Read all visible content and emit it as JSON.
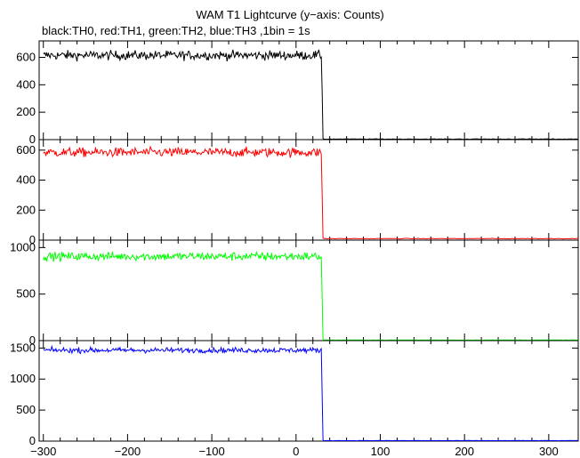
{
  "header": {
    "title": "WAM T1 Lightcurve (y−axis: Counts)",
    "subtitle": "black:TH0, red:TH1, green:TH2, blue:TH3 ,1bin = 1s"
  },
  "chart_data": [
    {
      "type": "line",
      "series": [
        {
          "name": "TH0",
          "color": "#000000",
          "level_before": 615,
          "noise": 24,
          "drop_at": 31,
          "transition": [
            [
              31,
              340
            ],
            [
              32,
              10
            ]
          ],
          "level_after": 4
        }
      ],
      "xlim": [
        -305,
        335
      ],
      "ylim": [
        0,
        720
      ],
      "yticks": [
        0,
        200,
        400,
        600
      ],
      "ytick_labels": [
        "0",
        "200",
        "400",
        "600"
      ]
    },
    {
      "type": "line",
      "series": [
        {
          "name": "TH1",
          "color": "#ff0000",
          "level_before": 585,
          "noise": 22,
          "drop_at": 31,
          "transition": [
            [
              31,
              290
            ],
            [
              32,
              14
            ]
          ],
          "level_after": 10
        }
      ],
      "xlim": [
        -305,
        335
      ],
      "ylim": [
        0,
        670
      ],
      "yticks": [
        0,
        200,
        400,
        600
      ],
      "ytick_labels": [
        "0",
        "200",
        "400",
        "600"
      ]
    },
    {
      "type": "line",
      "series": [
        {
          "name": "TH2",
          "color": "#00ff00",
          "level_before": 905,
          "noise": 33,
          "drop_at": 31,
          "transition": [
            [
              31,
              450
            ],
            [
              32,
              15
            ]
          ],
          "level_after": 6
        }
      ],
      "xlim": [
        -305,
        335
      ],
      "ylim": [
        0,
        1080
      ],
      "yticks": [
        0,
        500,
        1000
      ],
      "ytick_labels": [
        "0",
        "500",
        "1000"
      ]
    },
    {
      "type": "line",
      "series": [
        {
          "name": "TH3",
          "color": "#0000ff",
          "level_before": 1465,
          "noise": 30,
          "drop_at": 31,
          "transition": [
            [
              31,
              700
            ],
            [
              32,
              20
            ]
          ],
          "level_after": 8
        }
      ],
      "xlim": [
        -305,
        335
      ],
      "ylim": [
        0,
        1620
      ],
      "yticks": [
        0,
        500,
        1000,
        1500
      ],
      "ytick_labels": [
        "0",
        "500",
        "1000",
        "1500"
      ]
    }
  ],
  "x_axis": {
    "ticks": [
      -300,
      -200,
      -100,
      0,
      100,
      200,
      300
    ],
    "tick_labels": [
      "−300",
      "−200",
      "−100",
      "0",
      "100",
      "200",
      "300"
    ]
  }
}
